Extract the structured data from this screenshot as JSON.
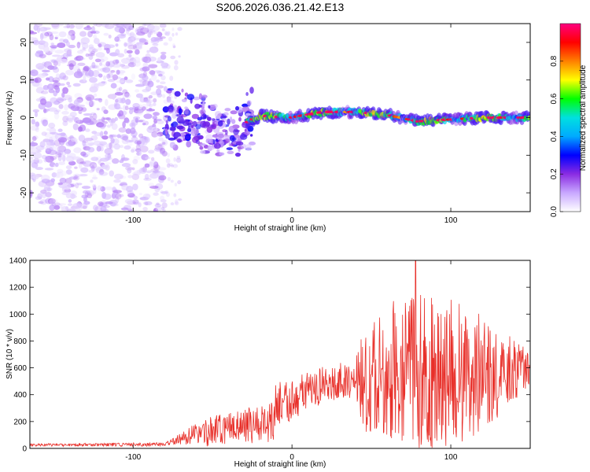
{
  "title": "S206.2026.036.21.42.E13",
  "chart_data": [
    {
      "type": "heatmap",
      "name": "spectrogram",
      "xlabel": "Height of straight line (km)",
      "ylabel": "Frequency (Hz)",
      "xlim": [
        -165,
        150
      ],
      "ylim": [
        -25,
        25
      ],
      "xticks": [
        -100,
        0,
        100
      ],
      "yticks": [
        -20,
        -10,
        0,
        10,
        20
      ],
      "colorbar": {
        "label": "Normalized spectral amplitude",
        "range": [
          0,
          1
        ],
        "ticks": [
          0.0,
          0.2,
          0.4,
          0.6,
          0.8
        ],
        "colors": [
          "#ffffff",
          "#c8a8ff",
          "#8a2be2",
          "#0000ff",
          "#00aaff",
          "#00e0e0",
          "#00ff00",
          "#ffff00",
          "#ff8000",
          "#ff0000",
          "#ff0080"
        ]
      },
      "regions": [
        {
          "x_range": [
            -165,
            -80
          ],
          "description": "broadband noise",
          "amplitude": 0.12
        },
        {
          "x_range": [
            -80,
            -25
          ],
          "description": "scattered returns",
          "amplitude": 0.25
        },
        {
          "x_range": [
            -25,
            150
          ],
          "description": "echo band near 0 Hz",
          "amplitude": 0.45
        }
      ],
      "ridge": [
        {
          "x": -80,
          "f": 0.0
        },
        {
          "x": -60,
          "f": -1.5
        },
        {
          "x": -40,
          "f": -4.0
        },
        {
          "x": -20,
          "f": 0.5
        },
        {
          "x": 0,
          "f": 0.0
        },
        {
          "x": 20,
          "f": 1.5
        },
        {
          "x": 40,
          "f": 1.5
        },
        {
          "x": 60,
          "f": 0.8
        },
        {
          "x": 80,
          "f": -1.0
        },
        {
          "x": 100,
          "f": -0.5
        },
        {
          "x": 120,
          "f": 0.0
        },
        {
          "x": 150,
          "f": 0.0
        }
      ]
    },
    {
      "type": "line",
      "name": "snr",
      "xlabel": "Height of straight line (km)",
      "ylabel": "SNR (10 * v/v)",
      "xlim": [
        -165,
        150
      ],
      "ylim": [
        0,
        1400
      ],
      "xticks": [
        -100,
        0,
        100
      ],
      "yticks": [
        0,
        200,
        400,
        600,
        800,
        1000,
        1200,
        1400
      ],
      "color": "#e8302a",
      "envelope": [
        {
          "x": -165,
          "base": 25,
          "amp": 10
        },
        {
          "x": -80,
          "base": 30,
          "amp": 15
        },
        {
          "x": -75,
          "base": 50,
          "amp": 25
        },
        {
          "x": -55,
          "base": 120,
          "amp": 110
        },
        {
          "x": -25,
          "base": 170,
          "amp": 140
        },
        {
          "x": -12,
          "base": 200,
          "amp": 150
        },
        {
          "x": -10,
          "base": 320,
          "amp": 170
        },
        {
          "x": 0,
          "base": 370,
          "amp": 160
        },
        {
          "x": 10,
          "base": 430,
          "amp": 150
        },
        {
          "x": 40,
          "base": 530,
          "amp": 140
        },
        {
          "x": 45,
          "base": 500,
          "amp": 380
        },
        {
          "x": 60,
          "base": 560,
          "amp": 520
        },
        {
          "x": 80,
          "base": 580,
          "amp": 600
        },
        {
          "x": 110,
          "base": 560,
          "amp": 520
        },
        {
          "x": 130,
          "base": 560,
          "amp": 350
        },
        {
          "x": 150,
          "base": 600,
          "amp": 120
        }
      ],
      "peak": {
        "x": 78,
        "y": 1400
      }
    }
  ]
}
